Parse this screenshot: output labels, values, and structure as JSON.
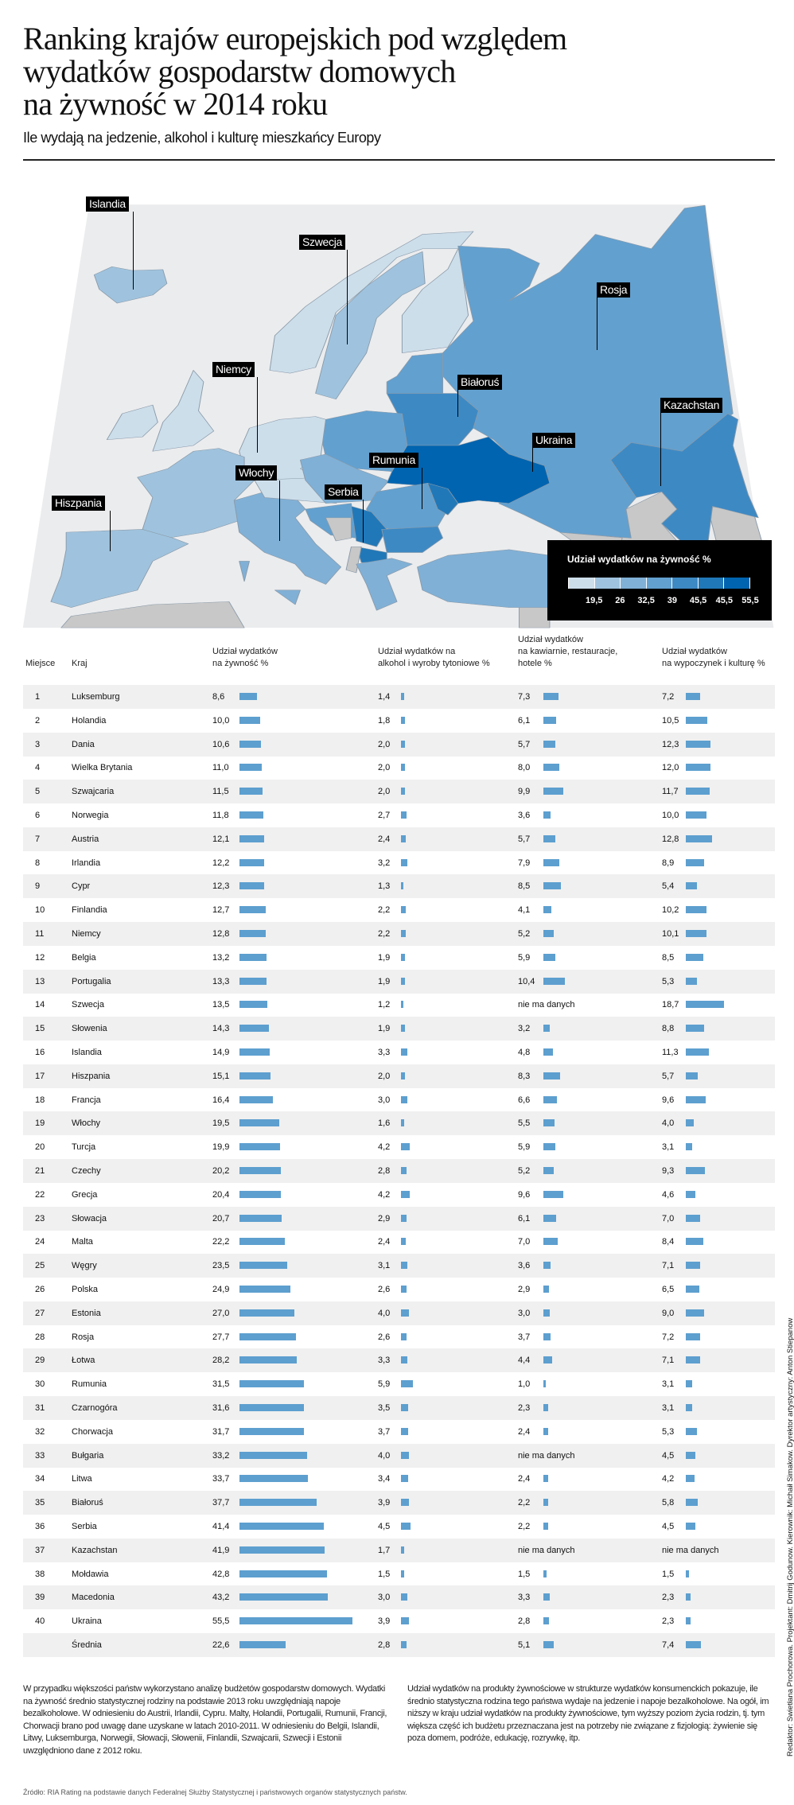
{
  "header": {
    "title_lines": [
      "Ranking krajów europejskich pod względem",
      "wydatków gospodarstw domowych",
      "na żywność w 2014 roku"
    ],
    "subtitle": "Ile wydają na jedzenie, alkohol i kulturę mieszkańcy Europy"
  },
  "map": {
    "labels": [
      "Islandia",
      "Szwecja",
      "Rosja",
      "Niemcy",
      "Białoruś",
      "Kazachstan",
      "Ukraina",
      "Rumunia",
      "Włochy",
      "Serbia",
      "Hiszpania"
    ],
    "colors": {
      "ocean": "#ebecee",
      "no_data": "#c8c8c8",
      "scale": [
        "#cddeeb",
        "#9fc3de",
        "#80b0d6",
        "#62a0cf",
        "#3d89c4",
        "#2178b8",
        "#0064b0"
      ]
    },
    "legend": {
      "title": "Udział wydatków na żywność %",
      "ticks": [
        "19,5",
        "26",
        "32,5",
        "39",
        "45,5",
        "45,5",
        "55,5"
      ]
    }
  },
  "table": {
    "headers": {
      "rank": "Miejsce",
      "country": "Kraj",
      "food": [
        "Udział wydatków",
        "na żywność %"
      ],
      "alcohol": [
        "Udział wydatków na",
        "alkohol i wyroby tytoniowe %"
      ],
      "cafe": [
        "Udział wydatków",
        "na kawiarnie, restauracje,",
        "hotele %"
      ],
      "leisure": [
        "Udział wydatków",
        "na wypoczynek i kulturę %"
      ]
    },
    "bar_color": "#5d9fcf",
    "rows": [
      [
        "1",
        "Luksemburg",
        "8,6",
        "1,4",
        "7,3",
        "7,2"
      ],
      [
        "2",
        "Holandia",
        "10,0",
        "1,8",
        "6,1",
        "10,5"
      ],
      [
        "3",
        "Dania",
        "10,6",
        "2,0",
        "5,7",
        "12,3"
      ],
      [
        "4",
        "Wielka Brytania",
        "11,0",
        "2,0",
        "8,0",
        "12,0"
      ],
      [
        "5",
        "Szwajcaria",
        "11,5",
        "2,0",
        "9,9",
        "11,7"
      ],
      [
        "6",
        "Norwegia",
        "11,8",
        "2,7",
        "3,6",
        "10,0"
      ],
      [
        "7",
        "Austria",
        "12,1",
        "2,4",
        "5,7",
        "12,8"
      ],
      [
        "8",
        "Irlandia",
        "12,2",
        "3,2",
        "7,9",
        "8,9"
      ],
      [
        "9",
        "Cypr",
        "12,3",
        "1,3",
        "8,5",
        "5,4"
      ],
      [
        "10",
        "Finlandia",
        "12,7",
        "2,2",
        "4,1",
        "10,2"
      ],
      [
        "11",
        "Niemcy",
        "12,8",
        "2,2",
        "5,2",
        "10,1"
      ],
      [
        "12",
        "Belgia",
        "13,2",
        "1,9",
        "5,9",
        "8,5"
      ],
      [
        "13",
        "Portugalia",
        "13,3",
        "1,9",
        "10,4",
        "5,3"
      ],
      [
        "14",
        "Szwecja",
        "13,5",
        "1,2",
        "nie ma danych",
        "18,7"
      ],
      [
        "15",
        "Słowenia",
        "14,3",
        "1,9",
        "3,2",
        "8,8"
      ],
      [
        "16",
        "Islandia",
        "14,9",
        "3,3",
        "4,8",
        "11,3"
      ],
      [
        "17",
        "Hiszpania",
        "15,1",
        "2,0",
        "8,3",
        "5,7"
      ],
      [
        "18",
        "Francja",
        "16,4",
        "3,0",
        "6,6",
        "9,6"
      ],
      [
        "19",
        "Włochy",
        "19,5",
        "1,6",
        "5,5",
        "4,0"
      ],
      [
        "20",
        "Turcja",
        "19,9",
        "4,2",
        "5,9",
        "3,1"
      ],
      [
        "21",
        "Czechy",
        "20,2",
        "2,8",
        "5,2",
        "9,3"
      ],
      [
        "22",
        "Grecja",
        "20,4",
        "4,2",
        "9,6",
        "4,6"
      ],
      [
        "23",
        "Słowacja",
        "20,7",
        "2,9",
        "6,1",
        "7,0"
      ],
      [
        "24",
        "Malta",
        "22,2",
        "2,4",
        "7,0",
        "8,4"
      ],
      [
        "25",
        "Węgry",
        "23,5",
        "3,1",
        "3,6",
        "7,1"
      ],
      [
        "26",
        "Polska",
        "24,9",
        "2,6",
        "2,9",
        "6,5"
      ],
      [
        "27",
        "Estonia",
        "27,0",
        "4,0",
        "3,0",
        "9,0"
      ],
      [
        "28",
        "Rosja",
        "27,7",
        "2,6",
        "3,7",
        "7,2"
      ],
      [
        "29",
        "Łotwa",
        "28,2",
        "3,3",
        "4,4",
        "7,1"
      ],
      [
        "30",
        "Rumunia",
        "31,5",
        "5,9",
        "1,0",
        "3,1"
      ],
      [
        "31",
        "Czarnogóra",
        "31,6",
        "3,5",
        "2,3",
        "3,1"
      ],
      [
        "32",
        "Chorwacja",
        "31,7",
        "3,7",
        "2,4",
        "5,3"
      ],
      [
        "33",
        "Bułgaria",
        "33,2",
        "4,0",
        "nie ma danych",
        "4,5"
      ],
      [
        "34",
        "Litwa",
        "33,7",
        "3,4",
        "2,4",
        "4,2"
      ],
      [
        "35",
        "Białoruś",
        "37,7",
        "3,9",
        "2,2",
        "5,8"
      ],
      [
        "36",
        "Serbia",
        "41,4",
        "4,5",
        "2,2",
        "4,5"
      ],
      [
        "37",
        "Kazachstan",
        "41,9",
        "1,7",
        "nie ma danych",
        "nie ma danych"
      ],
      [
        "38",
        "Mołdawia",
        "42,8",
        "1,5",
        "1,5",
        "1,5"
      ],
      [
        "39",
        "Macedonia",
        "43,2",
        "3,0",
        "3,3",
        "2,3"
      ],
      [
        "40",
        "Ukraina",
        "55,5",
        "3,9",
        "2,8",
        "2,3"
      ],
      [
        "",
        "Średnia",
        "22,6",
        "2,8",
        "5,1",
        "7,4"
      ]
    ]
  },
  "notes": {
    "left": "W przypadku większości państw wykorzystano analizę budżetów gospodarstw domowych. Wydatki na żywność średnio statystycznej rodziny na podstawie 2013 roku uwzględniają napoje bezalkoholowe. W odniesieniu do Austrii, Irlandii, Cypru. Malty, Holandii, Portugalii, Rumunii, Francji, Chorwacji brano pod uwagę dane uzyskane w latach 2010-2011. W odniesieniu do Belgii, Islandii, Litwy, Luksemburga, Norwegii, Słowacji, Słowenii, Finlandii, Szwajcarii, Szwecji i Estonii  uwzględniono dane z 2012 roku.",
    "right": "Udział wydatków na produkty żywnościowe w strukturze wydatków konsumenckich pokazuje, ile średnio statystyczna rodzina tego państwa wydaje na jedzenie i napoje bezalkoholowe. Na ogół, im niższy w kraju udział wydatków na produkty żywnościowe, tym wyższy poziom życia rodzin, tj. tym większa część ich budżetu przeznaczana jest na potrzeby nie związane z fizjologią: żywienie się poza domem, podróże, edukację, rozrywkę, itp.",
    "source": "Źródło: RIA Rating na podstawie danych Federalnej Służby Statystycznej i państwowych organów statystycznych państw.",
    "credits": "Redaktor: Swietłana Prochorowa. Projektant: Dmitrij Godunow. Kierownik: Michaił Simakow. Dyrektor artystyczny: Anton Stiepanow"
  }
}
